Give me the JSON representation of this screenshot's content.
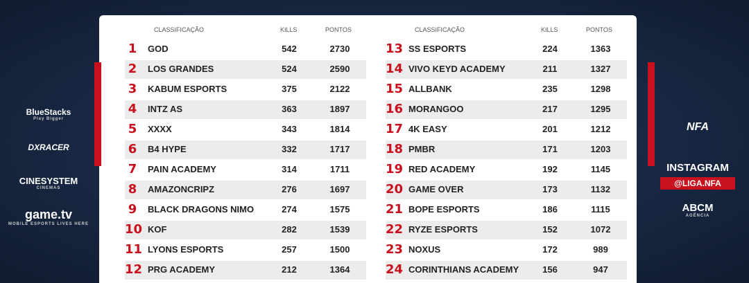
{
  "sponsors_left": [
    {
      "name": "BlueStacks",
      "tagline": "Play Bigger"
    },
    {
      "name": "DXRACER"
    },
    {
      "name": "CINESYSTEM",
      "tagline": "CINEMAS"
    },
    {
      "name": "game.tv",
      "tagline": "MOBILE ESPORTS LIVES HERE"
    }
  ],
  "right": {
    "logo": "NFA",
    "instagram_label": "INSTAGRAM",
    "instagram_handle": "@LIGA.NFA",
    "agency": "ABCM",
    "agency_tagline": "AGÊNCIA"
  },
  "tables": [
    {
      "header": [
        "CLASSIFICAÇÃO",
        "KILLS",
        "PONTOS"
      ],
      "rows": [
        [
          1,
          "GOD",
          542,
          2730
        ],
        [
          2,
          "LOS GRANDES",
          524,
          2590
        ],
        [
          3,
          "KABUM ESPORTS",
          375,
          2122
        ],
        [
          4,
          "INTZ AS",
          363,
          1897
        ],
        [
          5,
          "XXXX",
          343,
          1814
        ],
        [
          6,
          "B4 HYPE",
          332,
          1717
        ],
        [
          7,
          "PAIN ACADEMY",
          314,
          1711
        ],
        [
          8,
          "AMAZONCRIPZ",
          276,
          1697
        ],
        [
          9,
          "BLACK DRAGONS NIMO",
          274,
          1575
        ],
        [
          10,
          "KOF",
          282,
          1539
        ],
        [
          11,
          "LYONS ESPORTS",
          257,
          1500
        ],
        [
          12,
          "PRG ACADEMY",
          212,
          1364
        ]
      ]
    },
    {
      "header": [
        "CLASSIFICAÇÃO",
        "KILLS",
        "PONTOS"
      ],
      "rows": [
        [
          13,
          "SS ESPORTS",
          224,
          1363
        ],
        [
          14,
          "VIVO KEYD ACADEMY",
          211,
          1327
        ],
        [
          15,
          "ALLBANK",
          235,
          1298
        ],
        [
          16,
          "MORANGOO",
          217,
          1295
        ],
        [
          17,
          "4K EASY",
          201,
          1212
        ],
        [
          18,
          "PMBR",
          171,
          1203
        ],
        [
          19,
          "RED ACADEMY",
          192,
          1145
        ],
        [
          20,
          "GAME OVER",
          173,
          1132
        ],
        [
          21,
          "BOPE ESPORTS",
          186,
          1115
        ],
        [
          22,
          "RYZE ESPORTS",
          152,
          1072
        ],
        [
          23,
          "NOXUS",
          172,
          989
        ],
        [
          24,
          "CORINTHIANS ACADEMY",
          156,
          947
        ]
      ]
    }
  ]
}
